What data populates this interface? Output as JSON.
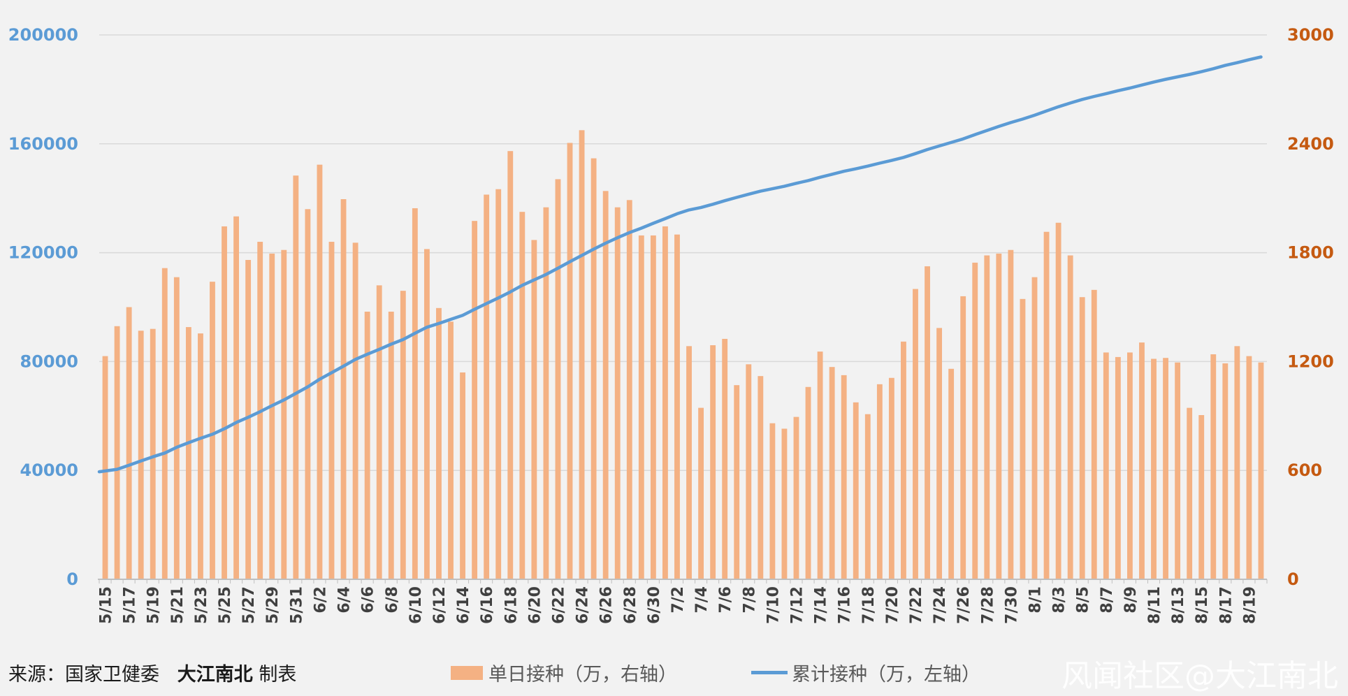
{
  "chart_data": {
    "type": "bar+line",
    "x": [
      "5/15",
      "5/16",
      "5/17",
      "5/18",
      "5/19",
      "5/20",
      "5/21",
      "5/22",
      "5/23",
      "5/24",
      "5/25",
      "5/26",
      "5/27",
      "5/28",
      "5/29",
      "5/30",
      "5/31",
      "6/1",
      "6/2",
      "6/3",
      "6/4",
      "6/5",
      "6/6",
      "6/7",
      "6/8",
      "6/9",
      "6/10",
      "6/11",
      "6/12",
      "6/13",
      "6/14",
      "6/15",
      "6/16",
      "6/17",
      "6/18",
      "6/19",
      "6/20",
      "6/21",
      "6/22",
      "6/23",
      "6/24",
      "6/25",
      "6/26",
      "6/27",
      "6/28",
      "6/29",
      "6/30",
      "7/1",
      "7/2",
      "7/3",
      "7/4",
      "7/5",
      "7/6",
      "7/7",
      "7/8",
      "7/9",
      "7/10",
      "7/11",
      "7/12",
      "7/13",
      "7/14",
      "7/15",
      "7/16",
      "7/17",
      "7/18",
      "7/19",
      "7/20",
      "7/21",
      "7/22",
      "7/23",
      "7/24",
      "7/25",
      "7/26",
      "7/27",
      "7/28",
      "7/29",
      "7/30",
      "7/31",
      "8/1",
      "8/2",
      "8/3",
      "8/4",
      "8/5",
      "8/6",
      "8/7",
      "8/8",
      "8/9",
      "8/10",
      "8/11",
      "8/12",
      "8/13",
      "8/14",
      "8/15",
      "8/16",
      "8/17",
      "8/18",
      "8/19",
      "8/20"
    ],
    "x_tick_labels": [
      "5/15",
      "5/17",
      "5/19",
      "5/21",
      "5/23",
      "5/25",
      "5/27",
      "5/29",
      "5/31",
      "6/2",
      "6/4",
      "6/6",
      "6/8",
      "6/10",
      "6/12",
      "6/14",
      "6/16",
      "6/18",
      "6/20",
      "6/22",
      "6/24",
      "6/26",
      "6/28",
      "6/30",
      "7/2",
      "7/4",
      "7/6",
      "7/8",
      "7/10",
      "7/12",
      "7/14",
      "7/16",
      "7/18",
      "7/20",
      "7/22",
      "7/24",
      "7/26",
      "7/28",
      "7/30",
      "8/1",
      "8/3",
      "8/5",
      "8/7",
      "8/9",
      "8/11",
      "8/13",
      "8/15",
      "8/17",
      "8/19"
    ],
    "series": [
      {
        "name": "单日接种（万，右轴）",
        "type": "bar",
        "axis": "right",
        "color": "#f4b183",
        "values": [
          1230,
          1395,
          1500,
          1370,
          1380,
          1715,
          1665,
          1390,
          1355,
          1640,
          1945,
          2000,
          1760,
          1860,
          1795,
          1815,
          2225,
          2040,
          2285,
          1860,
          2095,
          1855,
          1475,
          1620,
          1475,
          1590,
          2045,
          1820,
          1495,
          1420,
          1140,
          1975,
          2120,
          2150,
          2360,
          2025,
          1870,
          2050,
          2205,
          2405,
          2475,
          2320,
          2140,
          2050,
          2090,
          1895,
          1895,
          1945,
          1900,
          1285,
          945,
          1290,
          1325,
          1070,
          1185,
          1120,
          860,
          830,
          895,
          1060,
          1255,
          1170,
          1125,
          975,
          910,
          1075,
          1110,
          1310,
          1600,
          1725,
          1385,
          1160,
          1560,
          1745,
          1785,
          1795,
          1815,
          1545,
          1665,
          1915,
          1965,
          1785,
          1555,
          1595,
          1250,
          1225,
          1250,
          1305,
          1215,
          1220,
          1195,
          945,
          905,
          1240,
          1190,
          1285,
          1230,
          1195
        ]
      },
      {
        "name": "累计接种（万，左轴）",
        "type": "line",
        "axis": "left",
        "color": "#5b9bd5",
        "values": [
          39500,
          40400,
          41900,
          43500,
          45000,
          46400,
          48500,
          50200,
          51800,
          53300,
          55300,
          57600,
          59500,
          61600,
          63800,
          65900,
          68300,
          70700,
          73500,
          75900,
          78300,
          80800,
          82700,
          84500,
          86400,
          88100,
          90400,
          92600,
          94000,
          95500,
          97000,
          99200,
          101300,
          103400,
          105600,
          108000,
          110000,
          112000,
          114300,
          116700,
          119000,
          121300,
          123500,
          125500,
          127400,
          129000,
          130800,
          132500,
          134300,
          135700,
          136600,
          137800,
          139100,
          140300,
          141500,
          142600,
          143500,
          144400,
          145500,
          146500,
          147700,
          148800,
          149900,
          150800,
          151800,
          152900,
          153900,
          155000,
          156400,
          157900,
          159200,
          160500,
          161800,
          163400,
          164900,
          166400,
          167800,
          169100,
          170500,
          172100,
          173600,
          175000,
          176300,
          177400,
          178400,
          179500,
          180500,
          181600,
          182700,
          183700,
          184600,
          185500,
          186500,
          187600,
          188800,
          189800,
          190900,
          191900
        ]
      }
    ],
    "ylim_left": [
      0,
      200000
    ],
    "yticks_left": [
      "0",
      "40000",
      "80000",
      "120000",
      "160000",
      "200000"
    ],
    "ylim_right": [
      0,
      3000
    ],
    "yticks_right": [
      "0",
      "600",
      "1200",
      "1800",
      "2400",
      "3000"
    ],
    "grid": true,
    "legend_placement": "bottom-center"
  },
  "footer": {
    "source_prefix": "来源：国家卫健委",
    "source_brand": "大江南北",
    "source_suffix": "制表",
    "legend_bar": "单日接种（万，右轴）",
    "legend_line": "累计接种（万，左轴）",
    "watermark": "风闻社区@大江南北"
  },
  "colors": {
    "bar": "#f4b183",
    "line": "#5b9bd5",
    "left_axis_text": "#5b9bd5",
    "right_axis_text": "#c55a11",
    "background": "#f2f2f2"
  }
}
